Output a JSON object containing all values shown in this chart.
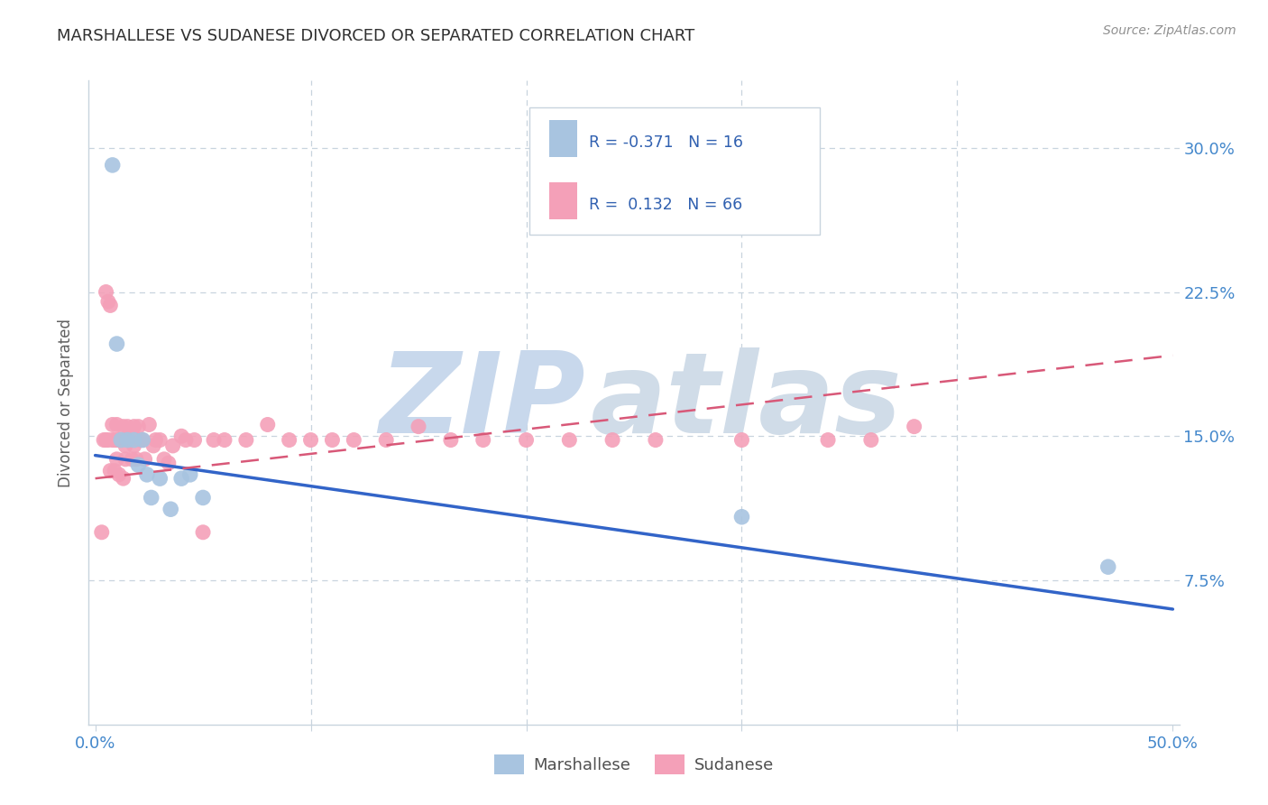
{
  "title": "MARSHALLESE VS SUDANESE DIVORCED OR SEPARATED CORRELATION CHART",
  "source": "Source: ZipAtlas.com",
  "ylabel": "Divorced or Separated",
  "xlim": [
    -0.003,
    0.503
  ],
  "ylim": [
    0.0,
    0.335
  ],
  "xtick_vals": [
    0.0,
    0.1,
    0.2,
    0.3,
    0.4,
    0.5
  ],
  "xtick_labels": [
    "0.0%",
    "",
    "",
    "",
    "",
    "50.0%"
  ],
  "ytick_vals": [
    0.075,
    0.15,
    0.225,
    0.3
  ],
  "ytick_labels": [
    "7.5%",
    "15.0%",
    "22.5%",
    "30.0%"
  ],
  "marshallese_color": "#a8c4e0",
  "sudanese_color": "#f4a0b8",
  "marshallese_line_color": "#3264c8",
  "sudanese_line_color": "#d85878",
  "tick_label_color": "#4488cc",
  "watermark_zip": "ZIP",
  "watermark_atlas": "atlas",
  "watermark_color": "#c8d8ec",
  "grid_color": "#c8d4de",
  "background_color": "#ffffff",
  "legend_r_marsh": "R = -0.371",
  "legend_n_marsh": "N = 16",
  "legend_r_sud": "R =  0.132",
  "legend_n_sud": "N = 66",
  "blue_line_y0": 0.14,
  "blue_line_y1": 0.06,
  "pink_line_y0": 0.128,
  "pink_line_y1": 0.192,
  "marshallese_x": [
    0.008,
    0.01,
    0.012,
    0.015,
    0.018,
    0.02,
    0.022,
    0.024,
    0.026,
    0.03,
    0.035,
    0.04,
    0.044,
    0.05,
    0.3,
    0.47
  ],
  "marshallese_y": [
    0.291,
    0.198,
    0.148,
    0.148,
    0.148,
    0.135,
    0.148,
    0.13,
    0.118,
    0.128,
    0.112,
    0.128,
    0.13,
    0.118,
    0.108,
    0.082
  ],
  "sudanese_x": [
    0.003,
    0.004,
    0.005,
    0.005,
    0.006,
    0.006,
    0.007,
    0.007,
    0.008,
    0.008,
    0.009,
    0.009,
    0.01,
    0.01,
    0.01,
    0.011,
    0.011,
    0.012,
    0.012,
    0.013,
    0.013,
    0.014,
    0.014,
    0.015,
    0.015,
    0.016,
    0.016,
    0.017,
    0.018,
    0.018,
    0.019,
    0.02,
    0.021,
    0.022,
    0.023,
    0.025,
    0.027,
    0.028,
    0.03,
    0.032,
    0.034,
    0.036,
    0.04,
    0.042,
    0.046,
    0.05,
    0.055,
    0.06,
    0.07,
    0.08,
    0.09,
    0.1,
    0.11,
    0.12,
    0.135,
    0.15,
    0.165,
    0.18,
    0.2,
    0.22,
    0.24,
    0.26,
    0.3,
    0.34,
    0.36,
    0.38
  ],
  "sudanese_y": [
    0.1,
    0.148,
    0.225,
    0.148,
    0.22,
    0.148,
    0.218,
    0.132,
    0.156,
    0.148,
    0.132,
    0.148,
    0.138,
    0.148,
    0.156,
    0.148,
    0.13,
    0.148,
    0.148,
    0.128,
    0.155,
    0.145,
    0.138,
    0.148,
    0.155,
    0.148,
    0.148,
    0.138,
    0.155,
    0.145,
    0.138,
    0.155,
    0.148,
    0.148,
    0.138,
    0.156,
    0.145,
    0.148,
    0.148,
    0.138,
    0.136,
    0.145,
    0.15,
    0.148,
    0.148,
    0.1,
    0.148,
    0.148,
    0.148,
    0.156,
    0.148,
    0.148,
    0.148,
    0.148,
    0.148,
    0.155,
    0.148,
    0.148,
    0.148,
    0.148,
    0.148,
    0.148,
    0.148,
    0.148,
    0.148,
    0.155
  ]
}
